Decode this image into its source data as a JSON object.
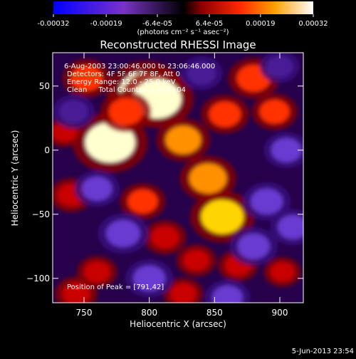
{
  "colorbar": {
    "tick_labels": [
      "-0.00032",
      "-0.00019",
      "-6.4e-05",
      "6.4e-05",
      "0.00019",
      "0.00032"
    ],
    "tick_values": [
      -0.00032,
      -0.00019,
      -6.4e-05,
      6.4e-05,
      0.00019,
      0.00032
    ],
    "range": [
      -0.00032,
      0.00032
    ],
    "unit_label": "(photons cm⁻² s⁻¹ asec⁻²)",
    "colors": [
      "#0000ff",
      "#7a32c8",
      "#000000",
      "#8b0000",
      "#ff2a00",
      "#ff9f00",
      "#ffffff"
    ]
  },
  "chart_data": {
    "type": "heatmap",
    "title": "Reconstructed RHESSI Image",
    "xlabel": "Heliocentric X (arcsec)",
    "ylabel": "Heliocentric Y (arcsec)",
    "xlim": [
      726,
      918
    ],
    "ylim": [
      -119,
      76
    ],
    "x_ticks": [
      750,
      800,
      850,
      900
    ],
    "y_ticks": [
      50,
      0,
      -50,
      -100
    ],
    "x_tick_labels": [
      "750",
      "800",
      "850",
      "900"
    ],
    "y_tick_labels": [
      "50",
      "0",
      "−50",
      "−100"
    ],
    "info": {
      "time_range": "6-Aug-2003 23:00:46.000 to 23:06:46.000",
      "detectors": "Detectors: 4F 5F 6F 7F 8F, Att 0",
      "energy": "Energy Range: 12.0 - 25.0 keV",
      "method": "Clean     Total Counts= 1.67E+04",
      "peak": "Position of Peak = [791,42]"
    },
    "peak_position": [
      791,
      42
    ],
    "blobs": [
      {
        "x": 797,
        "y": 45,
        "value": 1.0
      },
      {
        "x": 806,
        "y": 40,
        "value": 0.9
      },
      {
        "x": 770,
        "y": 6,
        "value": 0.95
      },
      {
        "x": 856,
        "y": -52,
        "value": 0.75
      },
      {
        "x": 845,
        "y": -22,
        "value": 0.6
      },
      {
        "x": 826,
        "y": 8,
        "value": 0.55
      },
      {
        "x": 782,
        "y": 30,
        "value": 0.5
      },
      {
        "x": 858,
        "y": 28,
        "value": 0.45
      },
      {
        "x": 880,
        "y": 56,
        "value": 0.5
      },
      {
        "x": 896,
        "y": 30,
        "value": 0.4
      },
      {
        "x": 752,
        "y": 56,
        "value": 0.45
      },
      {
        "x": 740,
        "y": -35,
        "value": 0.35
      },
      {
        "x": 795,
        "y": -40,
        "value": 0.4
      },
      {
        "x": 812,
        "y": -68,
        "value": 0.35
      },
      {
        "x": 836,
        "y": -86,
        "value": 0.3
      },
      {
        "x": 868,
        "y": -90,
        "value": 0.3
      },
      {
        "x": 902,
        "y": -95,
        "value": 0.25
      },
      {
        "x": 760,
        "y": -95,
        "value": 0.3
      },
      {
        "x": 744,
        "y": -112,
        "value": 0.35
      },
      {
        "x": 826,
        "y": -112,
        "value": 0.3
      },
      {
        "x": 735,
        "y": 14,
        "value": 0.25
      },
      {
        "x": 890,
        "y": -40,
        "value": -0.45
      },
      {
        "x": 905,
        "y": 0,
        "value": -0.4
      },
      {
        "x": 780,
        "y": -65,
        "value": -0.5
      },
      {
        "x": 760,
        "y": -30,
        "value": -0.4
      },
      {
        "x": 880,
        "y": -75,
        "value": -0.45
      },
      {
        "x": 840,
        "y": 60,
        "value": -0.35
      },
      {
        "x": 800,
        "y": -100,
        "value": -0.45
      },
      {
        "x": 900,
        "y": 65,
        "value": -0.3
      },
      {
        "x": 742,
        "y": 30,
        "value": -0.35
      },
      {
        "x": 860,
        "y": -115,
        "value": -0.4
      },
      {
        "x": 910,
        "y": -60,
        "value": -0.4
      }
    ]
  },
  "footer": {
    "date": "5-Jun-2013 23:54"
  }
}
